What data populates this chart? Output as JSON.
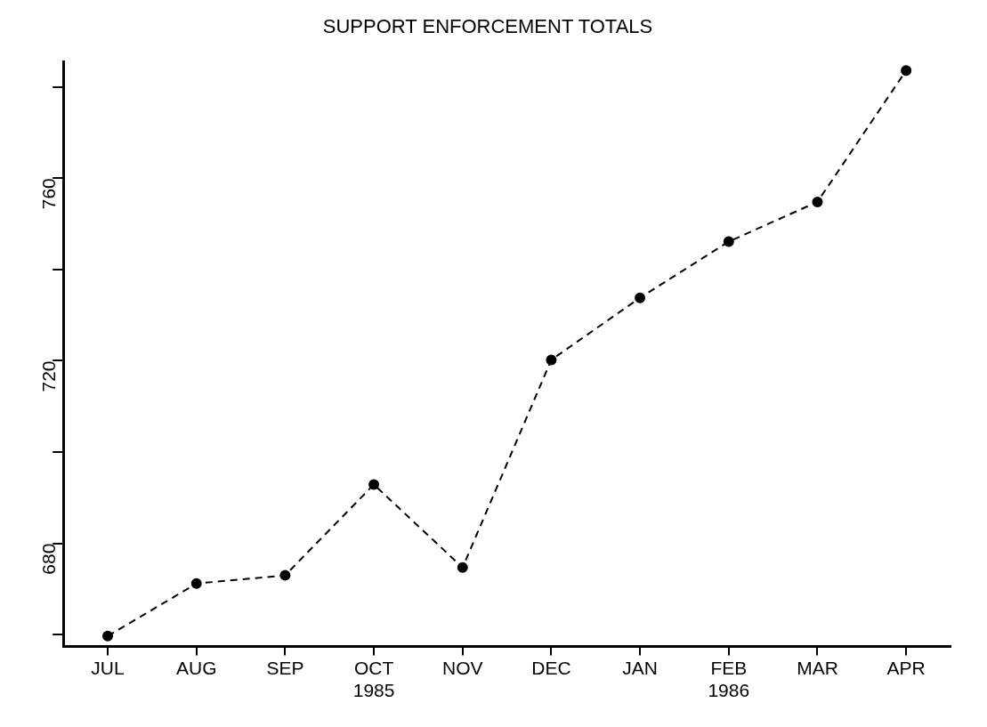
{
  "chart_data": {
    "type": "line",
    "title": "SUPPORT ENFORCEMENT TOTALS",
    "categories": [
      "JUL",
      "AUG",
      "SEP",
      "OCT\n1985",
      "NOV",
      "DEC",
      "JAN",
      "FEB\n1986",
      "MAR",
      "APR"
    ],
    "values": [
      659.7,
      671.2,
      673,
      692.9,
      674.7,
      720.2,
      733.8,
      746.1,
      754.8,
      783.6
    ],
    "color": "#000000",
    "ylim": [
      657.4,
      785.5
    ],
    "yticks": [
      {
        "value": 660,
        "label": null
      },
      680,
      {
        "value": 700,
        "label": null
      },
      720,
      {
        "value": 740,
        "label": null
      },
      760,
      {
        "value": 780,
        "label": null
      }
    ],
    "grid": false,
    "legend": false,
    "marker": "circle",
    "line_style": "dashed"
  }
}
